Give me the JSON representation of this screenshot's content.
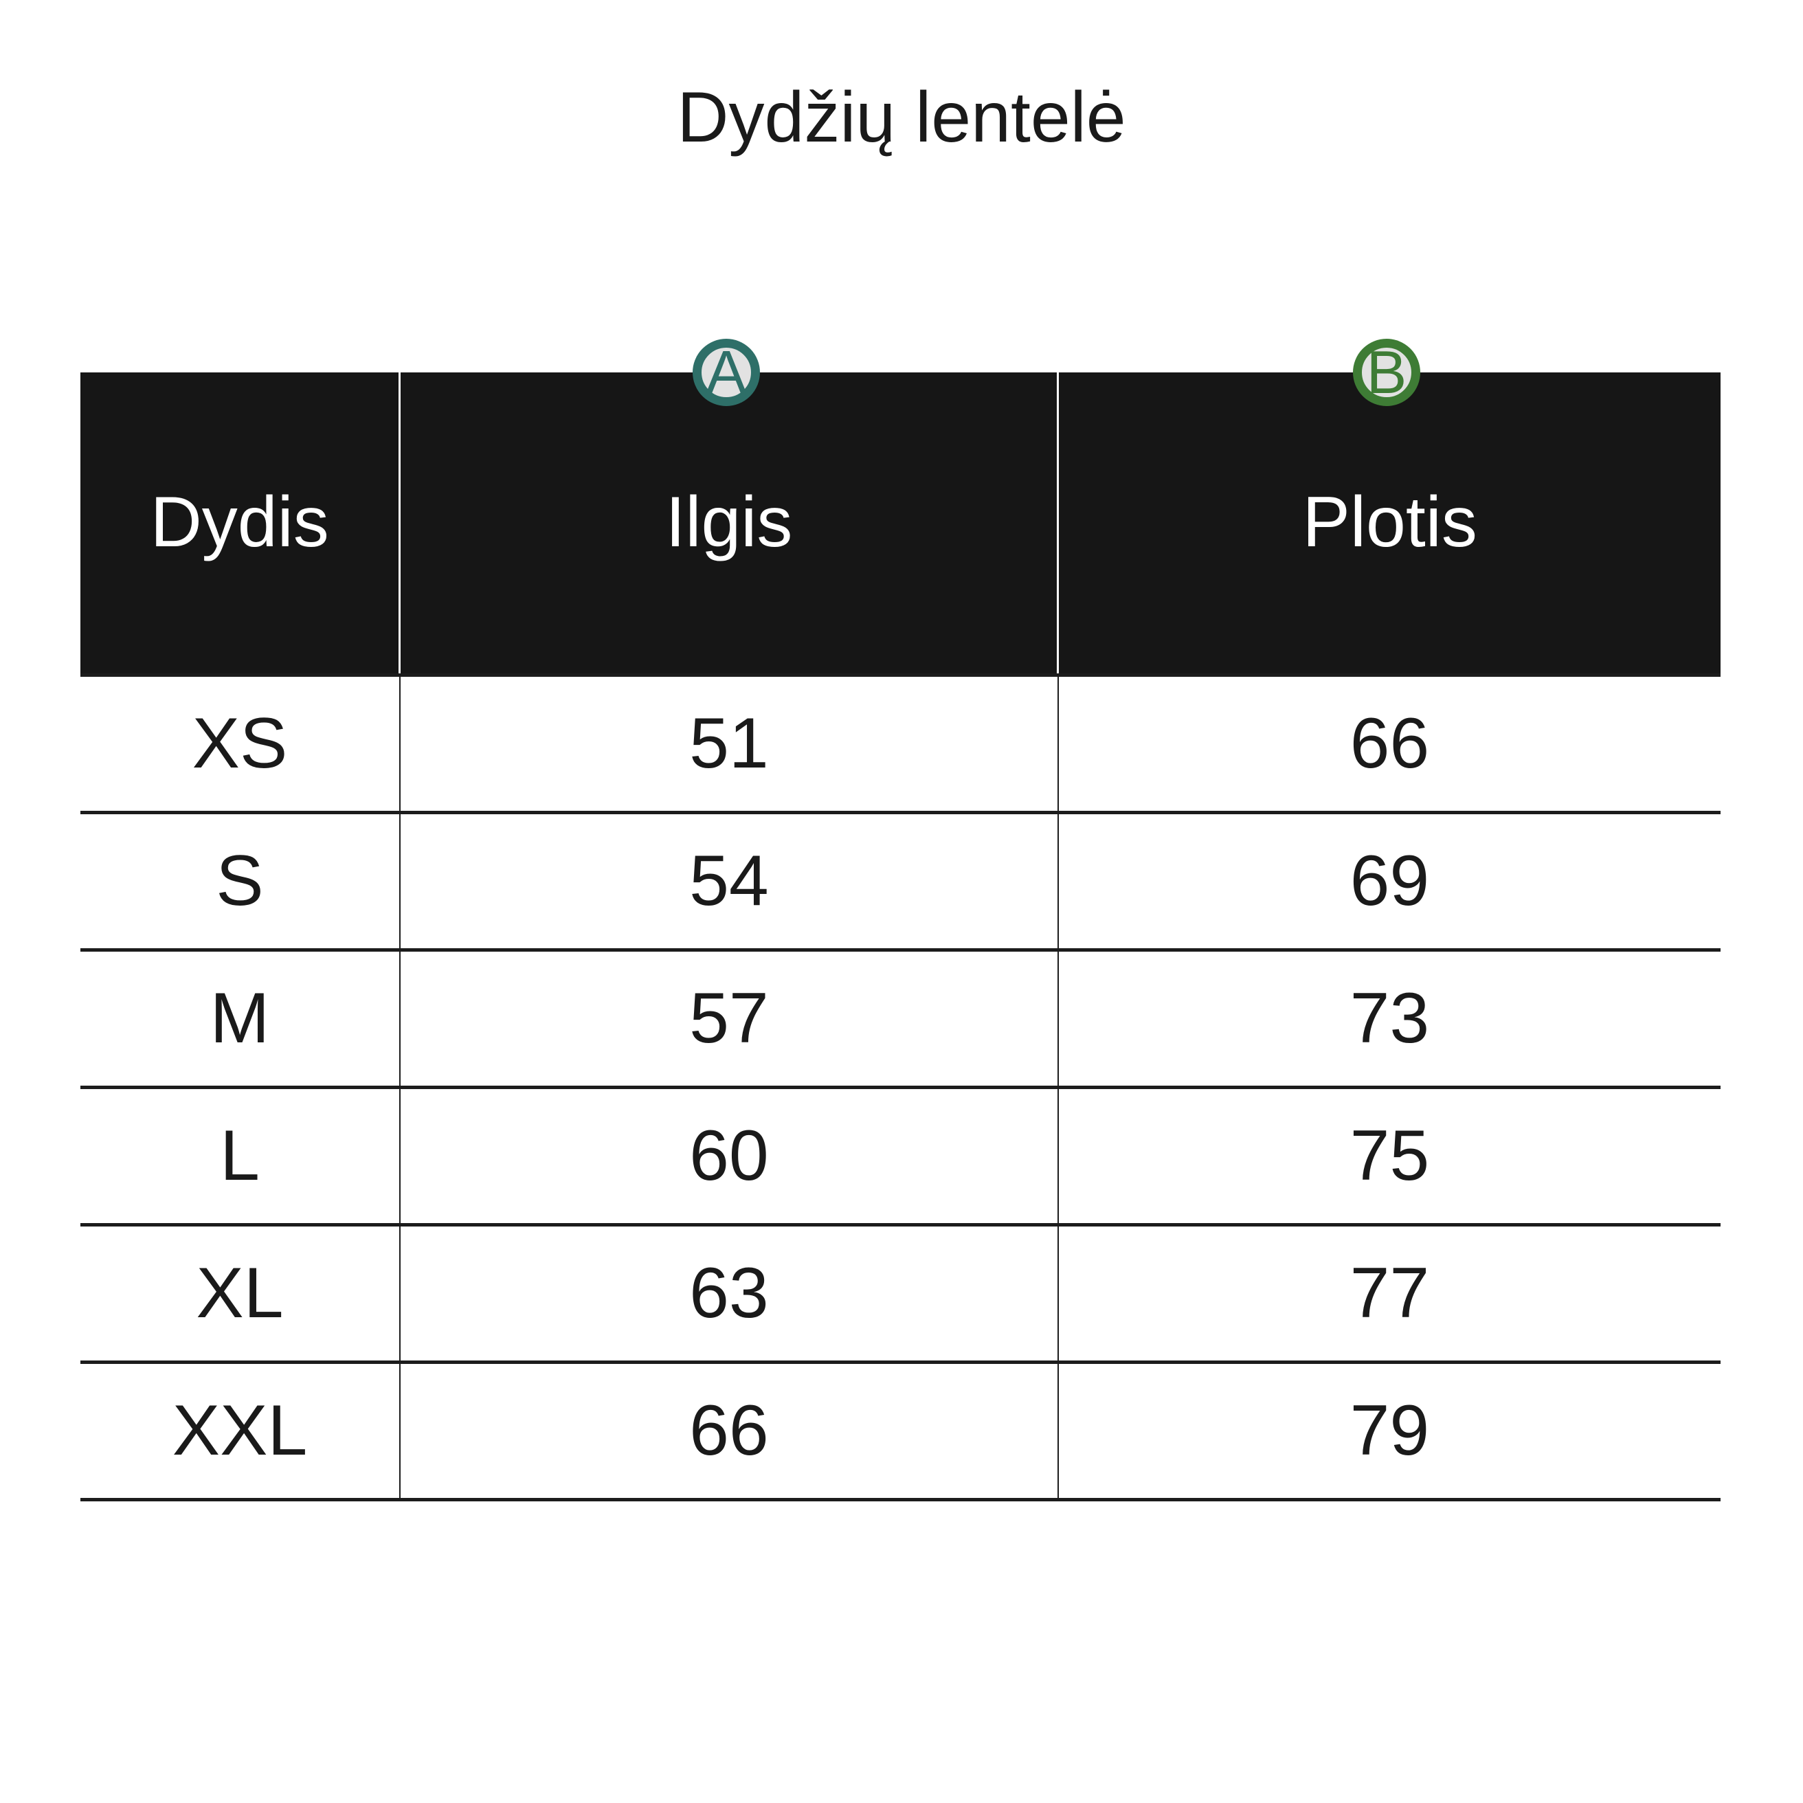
{
  "title": "Dydžių lentelė",
  "chart_data": {
    "type": "table",
    "title": "Dydžių lentelė",
    "columns": [
      "Dydis",
      "Ilgis",
      "Plotis"
    ],
    "rows": [
      [
        "XS",
        "51",
        "66"
      ],
      [
        "S",
        "54",
        "69"
      ],
      [
        "M",
        "57",
        "73"
      ],
      [
        "L",
        "60",
        "75"
      ],
      [
        "XL",
        "63",
        "77"
      ],
      [
        "XXL",
        "66",
        "79"
      ]
    ]
  },
  "badges": [
    {
      "label": "A",
      "ring_color": "#2e6f68",
      "fill_color": "#e2e2e2"
    },
    {
      "label": "B",
      "ring_color": "#3e7c35",
      "fill_color": "#e2e2e2"
    }
  ],
  "colors": {
    "background": "#ffffff",
    "header_bg": "#161616",
    "header_text": "#ffffff",
    "body_text": "#1a1a1a",
    "grid_line": "#1c1c1c"
  }
}
